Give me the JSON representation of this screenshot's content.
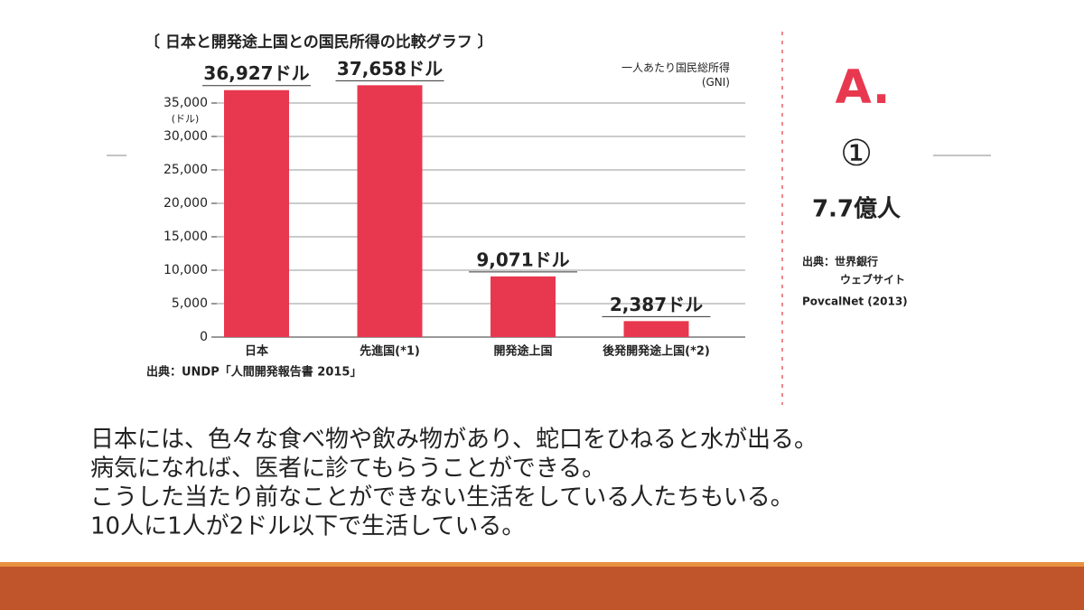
{
  "chart_data": {
    "type": "bar",
    "title": "〔 日本と開発途上国との国民所得の比較グラフ 〕",
    "y_label": "(ドル)",
    "annotation": "一人あたり国民総所得\n(GNI)",
    "source": "出典：UNDP「人間開発報告書 2015」",
    "categories": [
      "日本",
      "先進国(*1)",
      "開発途上国",
      "後発開発途上国(*2)"
    ],
    "values": [
      36927,
      37658,
      9071,
      2387
    ],
    "value_labels": [
      "36,927ドル",
      "37,658ドル",
      "9,071ドル",
      "2,387ドル"
    ],
    "color": "#e8384f",
    "ylim": [
      0,
      40000
    ],
    "yticks": [
      0,
      {
        "value": 5000,
        "label": "5,000"
      },
      {
        "value": 10000,
        "label": "10,000"
      },
      {
        "value": 15000,
        "label": "15,000"
      },
      {
        "value": 20000,
        "label": "20,000"
      },
      {
        "value": 25000,
        "label": "25,000"
      },
      {
        "value": 30000,
        "label": "30,000"
      },
      {
        "value": 35000,
        "label": "35,000"
      }
    ],
    "grid": true
  },
  "answer": {
    "letter": "A.",
    "number": "①",
    "result": "7.7億人",
    "source": [
      "出典：世界銀行",
      "ウェブサイト",
      "PovcalNet (2013)"
    ]
  },
  "body": [
    "日本には、色々な食べ物や飲み物があり、蛇口をひねると水が出る。",
    "病気になれば、医者に診てもらうことができる。",
    "こうした当たり前なことができない生活をしている人たちもいる。",
    "10人に1人が2ドル以下で生活している。"
  ]
}
